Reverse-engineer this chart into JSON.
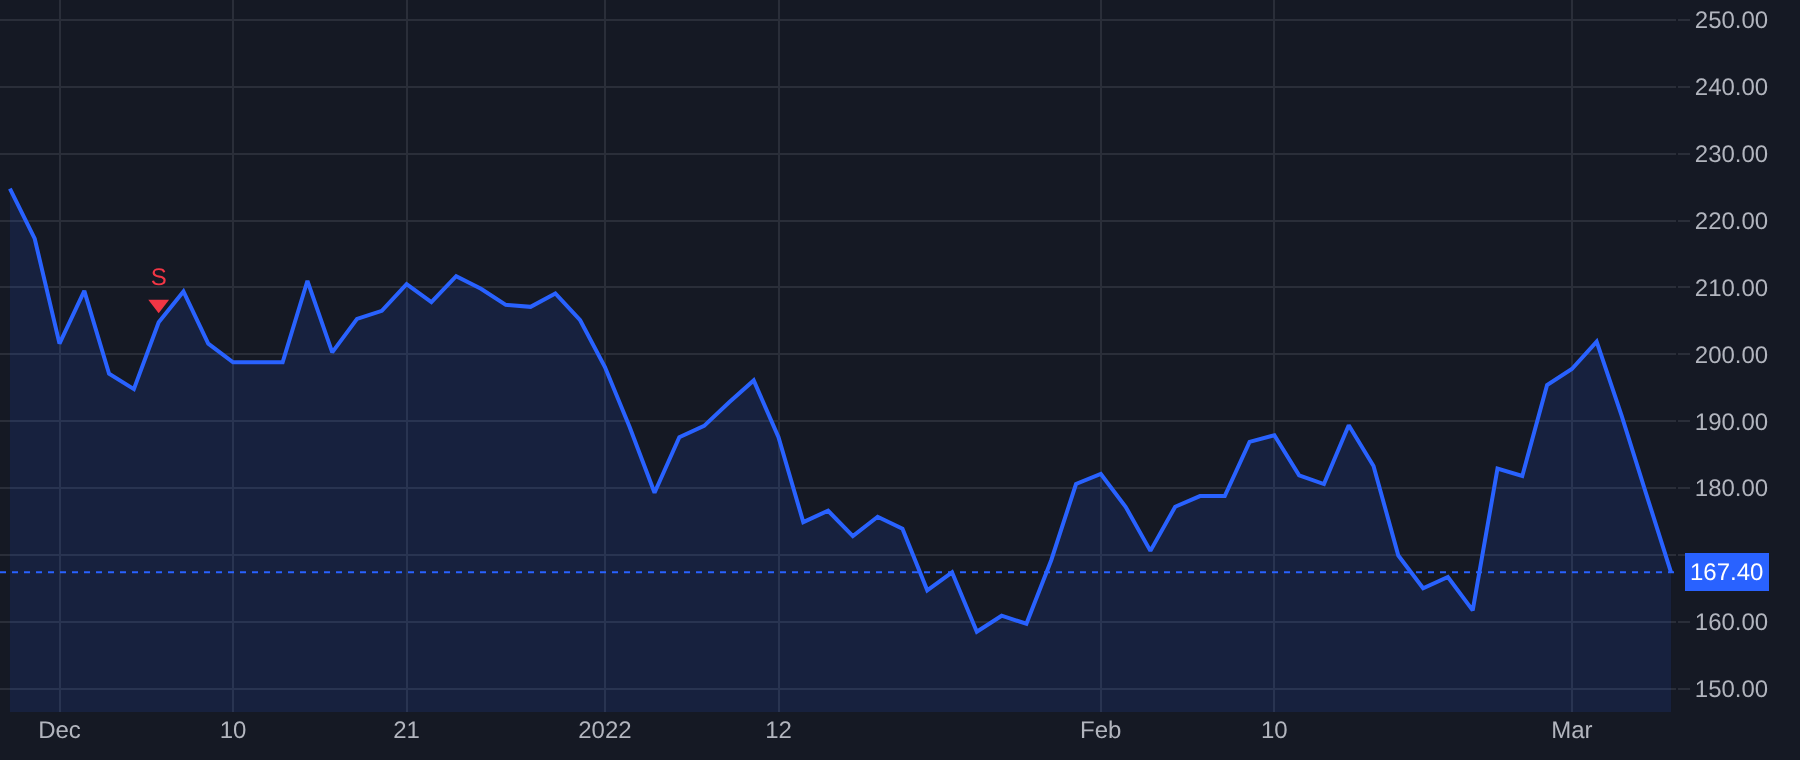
{
  "chart_data": {
    "type": "area",
    "categories": [
      null,
      null,
      "Dec",
      null,
      null,
      null,
      null,
      null,
      null,
      "10",
      null,
      null,
      null,
      null,
      null,
      null,
      "21",
      null,
      null,
      null,
      null,
      null,
      null,
      null,
      "2022",
      null,
      null,
      null,
      null,
      null,
      null,
      "12",
      null,
      null,
      null,
      null,
      null,
      null,
      null,
      null,
      null,
      null,
      null,
      null,
      "Feb",
      null,
      null,
      null,
      null,
      null,
      null,
      "10",
      null,
      null,
      null,
      null,
      null,
      null,
      null,
      null,
      null,
      null,
      null,
      "Mar",
      null,
      null,
      null,
      null
    ],
    "series": [
      {
        "color": "#2962ff",
        "values": [
          224.8,
          217.3,
          201.6,
          209.5,
          197.1,
          194.8,
          204.8,
          209.4,
          201.6,
          198.8,
          198.8,
          198.8,
          211.0,
          200.3,
          205.3,
          206.5,
          210.5,
          207.8,
          211.7,
          209.8,
          207.4,
          207.1,
          209.1,
          205.1,
          198.1,
          189.1,
          179.3,
          187.6,
          189.3,
          192.8,
          196.1,
          187.6,
          174.9,
          176.6,
          172.8,
          175.7,
          173.9,
          164.7,
          167.4,
          158.5,
          160.9,
          159.7,
          169.2,
          180.6,
          182.1,
          177.2,
          170.6,
          177.2,
          178.8,
          178.8,
          186.9,
          187.9,
          181.9,
          180.6,
          189.4,
          183.3,
          169.9,
          165.0,
          166.7,
          161.7,
          182.9,
          181.8,
          195.4,
          197.8,
          201.9,
          190.9,
          179.1,
          167.4
        ]
      },
      {
        "type": "scatter",
        "name": "S",
        "color": "#f23645",
        "marker": "triangle",
        "values": [
          null,
          null,
          null,
          null,
          null,
          null,
          207.5,
          null,
          null,
          null,
          null,
          null,
          null,
          null,
          null,
          null,
          null,
          null,
          null,
          null,
          null,
          null,
          null,
          null,
          null,
          null,
          null,
          null,
          null,
          null,
          null,
          null,
          null,
          null,
          null,
          null,
          null,
          null,
          null,
          null,
          null,
          null,
          null,
          null,
          null,
          null,
          null,
          null,
          null,
          null,
          null,
          null,
          null,
          null,
          null,
          null,
          null,
          null,
          null,
          null,
          null,
          null,
          null,
          null,
          null,
          null,
          null,
          null
        ]
      }
    ],
    "ylim": [
      146.5,
      253
    ],
    "yticks": [
      {
        "value": 150,
        "label": "150.00"
      },
      {
        "value": 160,
        "label": "160.00"
      },
      {
        "value": 170,
        "label": null
      },
      {
        "value": 180,
        "label": "180.00"
      },
      {
        "value": 190,
        "label": "190.00"
      },
      {
        "value": 200,
        "label": "200.00"
      },
      {
        "value": 210,
        "label": "210.00"
      },
      {
        "value": 220,
        "label": "220.00"
      },
      {
        "value": 230,
        "label": "230.00"
      },
      {
        "value": 240,
        "label": "240.00"
      },
      {
        "value": 250,
        "label": "250.00"
      }
    ],
    "ref_lines": [
      {
        "axis": "y",
        "value": 167.4,
        "label": "167.40",
        "color": "#2962ff",
        "line_style": "dotted"
      }
    ],
    "grid": true
  }
}
